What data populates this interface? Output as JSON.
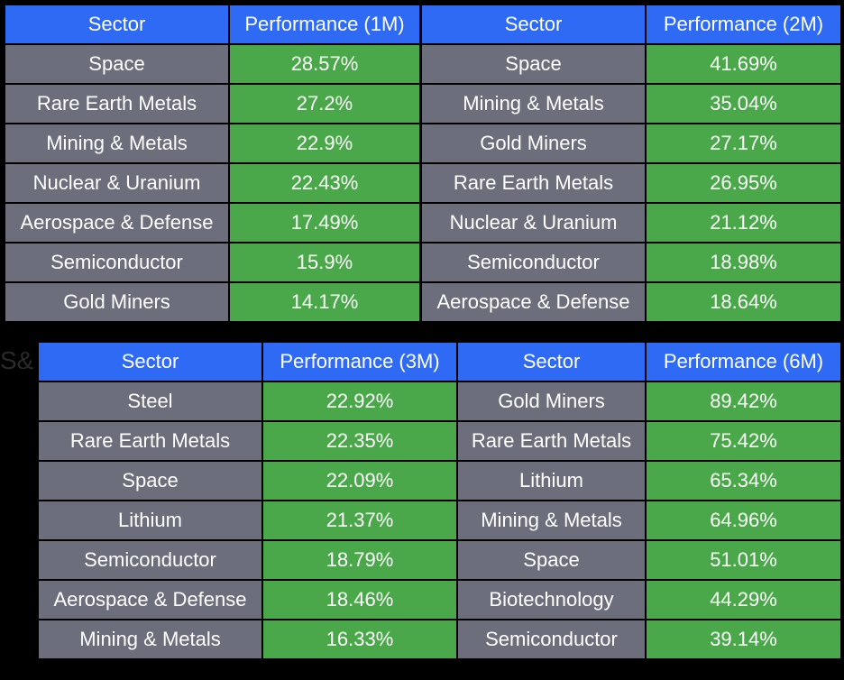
{
  "background_text": "S&",
  "tables": [
    {
      "header_sector": "Sector",
      "header_perf": "Performance (1M)",
      "rows": [
        {
          "sector": "Space",
          "value": "28.57%"
        },
        {
          "sector": "Rare Earth Metals",
          "value": "27.2%"
        },
        {
          "sector": "Mining & Metals",
          "value": "22.9%"
        },
        {
          "sector": "Nuclear & Uranium",
          "value": "22.43%"
        },
        {
          "sector": "Aerospace & Defense",
          "value": "17.49%"
        },
        {
          "sector": "Semiconductor",
          "value": "15.9%"
        },
        {
          "sector": "Gold Miners",
          "value": "14.17%"
        }
      ]
    },
    {
      "header_sector": "Sector",
      "header_perf": "Performance (2M)",
      "rows": [
        {
          "sector": "Space",
          "value": "41.69%"
        },
        {
          "sector": "Mining & Metals",
          "value": "35.04%"
        },
        {
          "sector": "Gold Miners",
          "value": "27.17%"
        },
        {
          "sector": "Rare Earth Metals",
          "value": "26.95%"
        },
        {
          "sector": "Nuclear & Uranium",
          "value": "21.12%"
        },
        {
          "sector": "Semiconductor",
          "value": "18.98%"
        },
        {
          "sector": "Aerospace & Defense",
          "value": "18.64%"
        }
      ]
    },
    {
      "header_sector": "Sector",
      "header_perf": "Performance (3M)",
      "rows": [
        {
          "sector": "Steel",
          "value": "22.92%"
        },
        {
          "sector": "Rare Earth Metals",
          "value": "22.35%"
        },
        {
          "sector": "Space",
          "value": "22.09%"
        },
        {
          "sector": "Lithium",
          "value": "21.37%"
        },
        {
          "sector": "Semiconductor",
          "value": "18.79%"
        },
        {
          "sector": "Aerospace & Defense",
          "value": "18.46%"
        },
        {
          "sector": "Mining & Metals",
          "value": "16.33%"
        }
      ]
    },
    {
      "header_sector": "Sector",
      "header_perf": "Performance (6M)",
      "rows": [
        {
          "sector": "Gold Miners",
          "value": "89.42%"
        },
        {
          "sector": "Rare Earth Metals",
          "value": "75.42%"
        },
        {
          "sector": "Lithium",
          "value": "65.34%"
        },
        {
          "sector": "Mining & Metals",
          "value": "64.96%"
        },
        {
          "sector": "Space",
          "value": "51.01%"
        },
        {
          "sector": "Biotechnology",
          "value": "44.29%"
        },
        {
          "sector": "Semiconductor",
          "value": "39.14%"
        }
      ]
    }
  ],
  "colors": {
    "header_bg": "#2f6af5",
    "sector_bg": "#6d6e7c",
    "value_bg": "#4aa74a",
    "text": "#ffffff",
    "page_bg": "#000000"
  }
}
